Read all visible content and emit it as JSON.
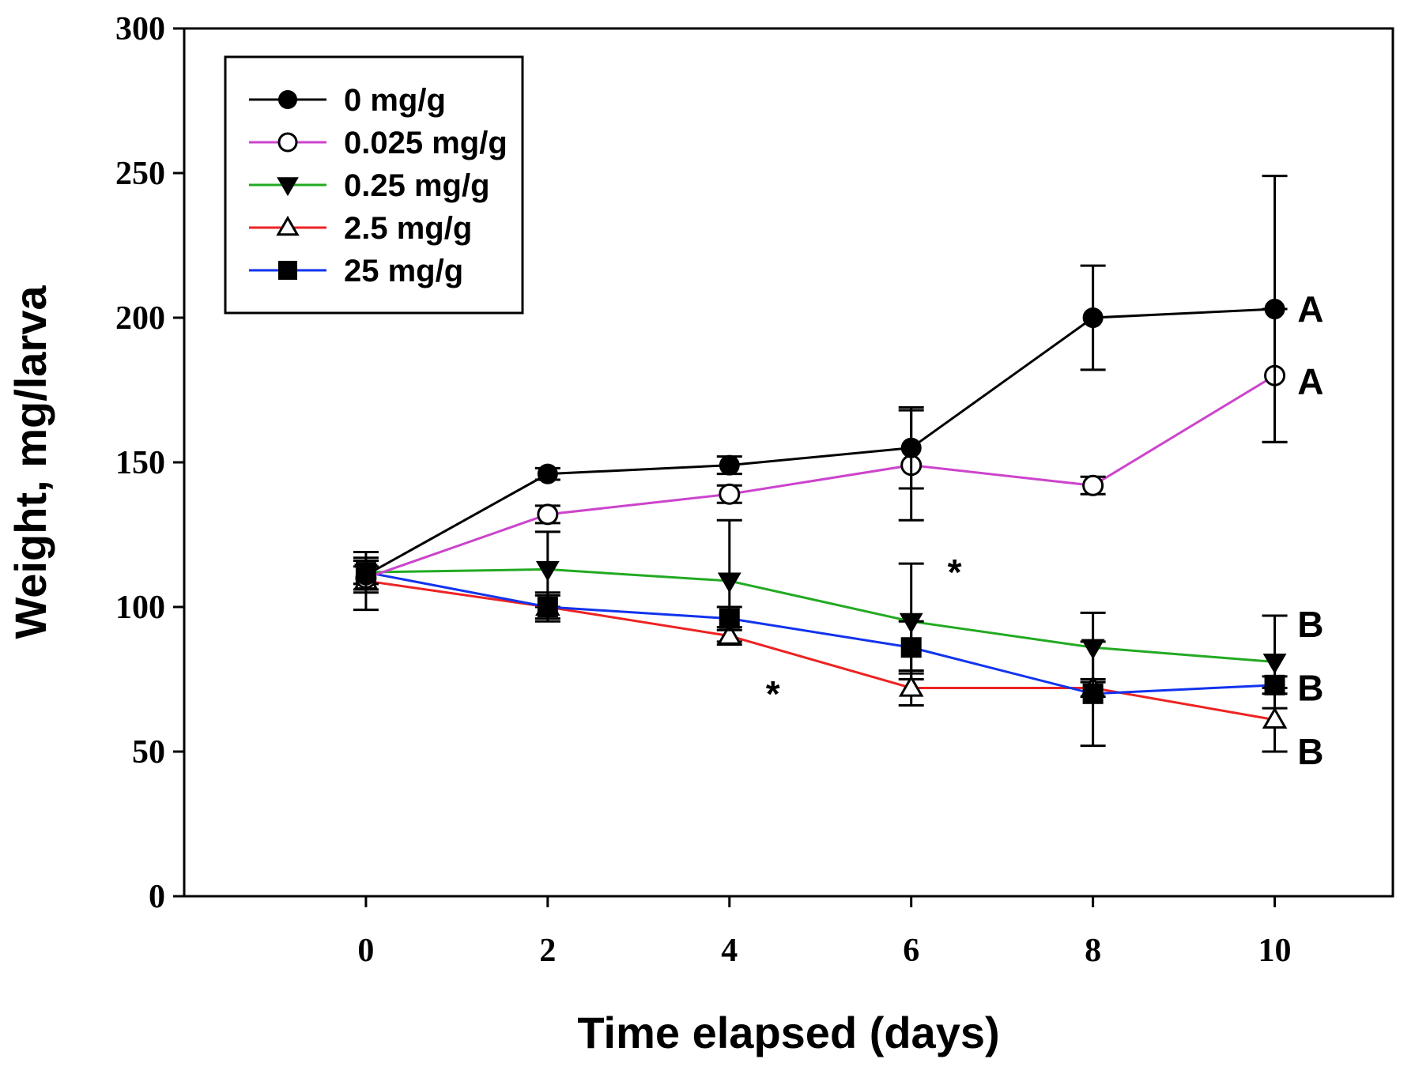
{
  "chart_data": {
    "type": "line",
    "title": "",
    "xlabel": "Time elapsed (days)",
    "ylabel": "Weight, mg/larva",
    "xlim": [
      -2,
      11.3
    ],
    "ylim": [
      0,
      300
    ],
    "x_ticks": [
      "0",
      "2",
      "4",
      "6",
      "8",
      "10"
    ],
    "y_ticks": [
      "0",
      "50",
      "100",
      "150",
      "200",
      "250",
      "300"
    ],
    "x": [
      0,
      2,
      4,
      6,
      8,
      10
    ],
    "legend_position": "top-left",
    "series": [
      {
        "name": "0 mg/g",
        "color": "#000000",
        "marker": "circle-filled",
        "values": [
          111,
          146,
          149,
          155,
          200,
          203
        ],
        "errors": [
          6,
          2,
          3,
          14,
          18,
          46
        ]
      },
      {
        "name": "0.025 mg/g",
        "color": "#cc44cc",
        "marker": "circle-open",
        "values": [
          110,
          132,
          139,
          149,
          142,
          180
        ],
        "errors": [
          4,
          3,
          3,
          19,
          3,
          23
        ]
      },
      {
        "name": "0.25 mg/g",
        "color": "#22aa22",
        "marker": "triangle-down-filled",
        "values": [
          112,
          113,
          109,
          95,
          86,
          81
        ],
        "errors": [
          4,
          13,
          21,
          20,
          12,
          16
        ]
      },
      {
        "name": "2.5 mg/g",
        "color": "#ee2222",
        "marker": "triangle-up-open",
        "values": [
          109,
          100,
          90,
          72,
          72,
          61
        ],
        "errors": [
          10,
          5,
          3,
          6,
          3,
          11
        ]
      },
      {
        "name": "25 mg/g",
        "color": "#1133ee",
        "marker": "square-filled",
        "values": [
          112,
          100,
          96,
          86,
          70,
          73
        ],
        "errors": [
          4,
          4,
          4,
          9,
          18,
          3
        ]
      }
    ],
    "annotations": [
      {
        "text": "A",
        "x": 10.25,
        "y": 203
      },
      {
        "text": "A",
        "x": 10.25,
        "y": 178
      },
      {
        "text": "B",
        "x": 10.25,
        "y": 94
      },
      {
        "text": "B",
        "x": 10.25,
        "y": 72
      },
      {
        "text": "B",
        "x": 10.25,
        "y": 50
      },
      {
        "text": "*",
        "x": 6.4,
        "y": 112
      },
      {
        "text": "*",
        "x": 4.4,
        "y": 70
      }
    ]
  }
}
